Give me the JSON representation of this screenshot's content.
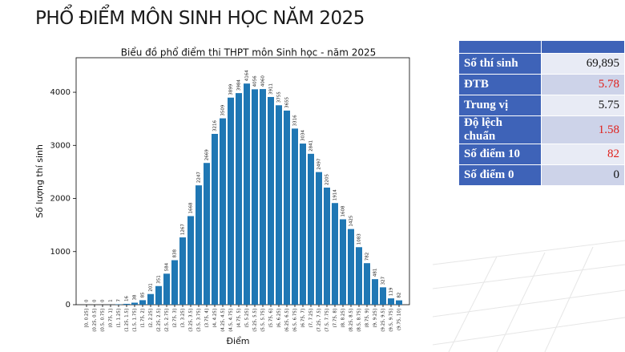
{
  "header": {
    "title": "PHỔ ĐIỂM MÔN SINH HỌC NĂM 2025"
  },
  "chart_data": {
    "type": "bar",
    "title": "Biểu đồ phổ điểm thi THPT môn Sinh học - năm 2025",
    "x_label": "Điểm",
    "y_label": "Số lượng thí sinh",
    "color": "#1f77b4",
    "categories": [
      "[0, 0.25]",
      "(0.25, 0.5]",
      "(0.5, 0.75]",
      "(0.75, 1]",
      "(1, 1.25]",
      "(1.25, 1.5]",
      "(1.5, 1.75]",
      "(1.75, 2]",
      "(2, 2.25]",
      "(2.25, 2.5]",
      "(2.5, 2.75]",
      "(2.75, 3]",
      "(3, 3.25]",
      "(3.25, 3.5]",
      "(3.5, 3.75]",
      "(3.75, 4]",
      "(4, 4.25]",
      "(4.25, 4.5]",
      "(4.5, 4.75]",
      "(4.75, 5]",
      "(5, 5.25]",
      "(5.25, 5.5]",
      "(5.5, 5.75]",
      "(5.75, 6]",
      "(6, 6.25]",
      "(6.25, 6.5]",
      "(6.5, 6.75]",
      "(6.75, 7]",
      "(7, 7.25]",
      "(7.25, 7.5]",
      "(7.5, 7.75]",
      "(7.75, 8]",
      "(8, 8.25]",
      "(8.25, 8.5]",
      "(8.5, 8.75]",
      "(8.75, 9]",
      "(9, 9.25]",
      "(9.25, 9.5]",
      "(9.5, 9.75]",
      "(9.75, 10]"
    ],
    "values": [
      0,
      0,
      0,
      1,
      7,
      16,
      38,
      85,
      201,
      351,
      584,
      838,
      1267,
      1668,
      2247,
      2669,
      3216,
      3509,
      3899,
      3984,
      4164,
      4056,
      4060,
      3911,
      3755,
      3655,
      3316,
      3034,
      2841,
      2497,
      2205,
      1914,
      1608,
      1425,
      1083,
      782,
      481,
      327,
      119,
      82
    ],
    "ylim": [
      0,
      4650
    ],
    "yticks": [
      0,
      1000,
      2000,
      3000,
      4000
    ]
  },
  "table": {
    "rows": [
      [
        "Số thí sinh",
        "69,895"
      ],
      [
        "ĐTB",
        "5.78"
      ],
      [
        "Trung vị",
        "5.75"
      ],
      [
        "Độ lệch chuẩn",
        "1.58"
      ],
      [
        "Số điểm 10",
        "82"
      ],
      [
        "Số điểm 0",
        "0"
      ]
    ]
  }
}
